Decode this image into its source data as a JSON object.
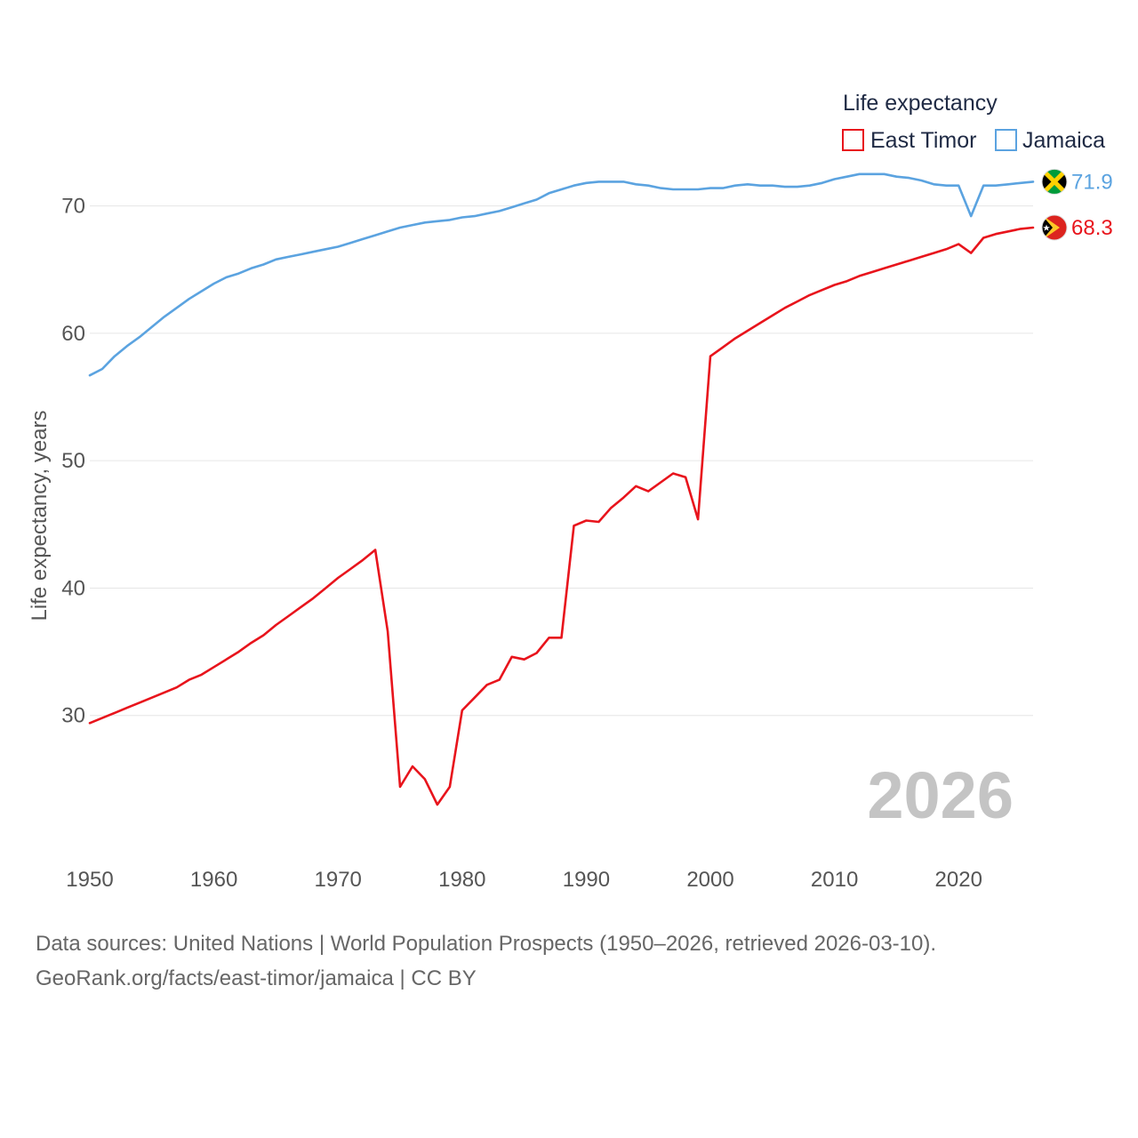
{
  "chart_data": {
    "type": "line",
    "title": "",
    "xlabel": "",
    "ylabel": "Life expectancy, years",
    "xlim": [
      1950,
      2026
    ],
    "ylim": [
      20,
      75
    ],
    "yticks": [
      30,
      40,
      50,
      60,
      70
    ],
    "xticks": [
      1950,
      1960,
      1970,
      1980,
      1990,
      2000,
      2010,
      2020
    ],
    "grid": true,
    "legend": {
      "title": "Life expectancy",
      "position": "top-right",
      "entries": [
        "East Timor",
        "Jamaica"
      ]
    },
    "current_year": "2026",
    "x": [
      1950,
      1951,
      1952,
      1953,
      1954,
      1955,
      1956,
      1957,
      1958,
      1959,
      1960,
      1961,
      1962,
      1963,
      1964,
      1965,
      1966,
      1967,
      1968,
      1969,
      1970,
      1971,
      1972,
      1973,
      1974,
      1975,
      1976,
      1977,
      1978,
      1979,
      1980,
      1981,
      1982,
      1983,
      1984,
      1985,
      1986,
      1987,
      1988,
      1989,
      1990,
      1991,
      1992,
      1993,
      1994,
      1995,
      1996,
      1997,
      1998,
      1999,
      2000,
      2001,
      2002,
      2003,
      2004,
      2005,
      2006,
      2007,
      2008,
      2009,
      2010,
      2011,
      2012,
      2013,
      2014,
      2015,
      2016,
      2017,
      2018,
      2019,
      2020,
      2021,
      2022,
      2023,
      2024,
      2025,
      2026
    ],
    "series": [
      {
        "name": "East Timor",
        "color": "#e8141c",
        "end_label": "68.3",
        "values": [
          29.4,
          29.8,
          30.2,
          30.6,
          31.0,
          31.4,
          31.8,
          32.2,
          32.8,
          33.2,
          33.8,
          34.4,
          35.0,
          35.7,
          36.3,
          37.1,
          37.8,
          38.5,
          39.2,
          40.0,
          40.8,
          41.5,
          42.2,
          43.0,
          36.6,
          24.4,
          26.0,
          25.0,
          23.0,
          24.4,
          30.4,
          31.4,
          32.4,
          32.8,
          34.6,
          34.4,
          34.9,
          36.1,
          36.1,
          44.9,
          45.3,
          45.2,
          46.3,
          47.1,
          48.0,
          47.6,
          48.3,
          49.0,
          48.7,
          45.4,
          58.2,
          58.9,
          59.6,
          60.2,
          60.8,
          61.4,
          62.0,
          62.5,
          63.0,
          63.4,
          63.8,
          64.1,
          64.5,
          64.8,
          65.1,
          65.4,
          65.7,
          66.0,
          66.3,
          66.6,
          67.0,
          66.3,
          67.5,
          67.8,
          68.0,
          68.2,
          68.3
        ]
      },
      {
        "name": "Jamaica",
        "color": "#5ba3e0",
        "end_label": "71.9",
        "values": [
          56.7,
          57.2,
          58.2,
          59.0,
          59.7,
          60.5,
          61.3,
          62.0,
          62.7,
          63.3,
          63.9,
          64.4,
          64.7,
          65.1,
          65.4,
          65.8,
          66.0,
          66.2,
          66.4,
          66.6,
          66.8,
          67.1,
          67.4,
          67.7,
          68.0,
          68.3,
          68.5,
          68.7,
          68.8,
          68.9,
          69.1,
          69.2,
          69.4,
          69.6,
          69.9,
          70.2,
          70.5,
          71.0,
          71.3,
          71.6,
          71.8,
          71.9,
          71.9,
          71.9,
          71.7,
          71.6,
          71.4,
          71.3,
          71.3,
          71.3,
          71.4,
          71.4,
          71.6,
          71.7,
          71.6,
          71.6,
          71.5,
          71.5,
          71.6,
          71.8,
          72.1,
          72.3,
          72.5,
          72.5,
          72.5,
          72.3,
          72.2,
          72.0,
          71.7,
          71.6,
          71.6,
          69.2,
          71.6,
          71.6,
          71.7,
          71.8,
          71.9
        ]
      }
    ]
  },
  "footer": {
    "line1": "Data sources: United Nations | World Population Prospects (1950–2026, retrieved 2026-03-10).",
    "line2": "GeoRank.org/facts/east-timor/jamaica | CC BY"
  }
}
